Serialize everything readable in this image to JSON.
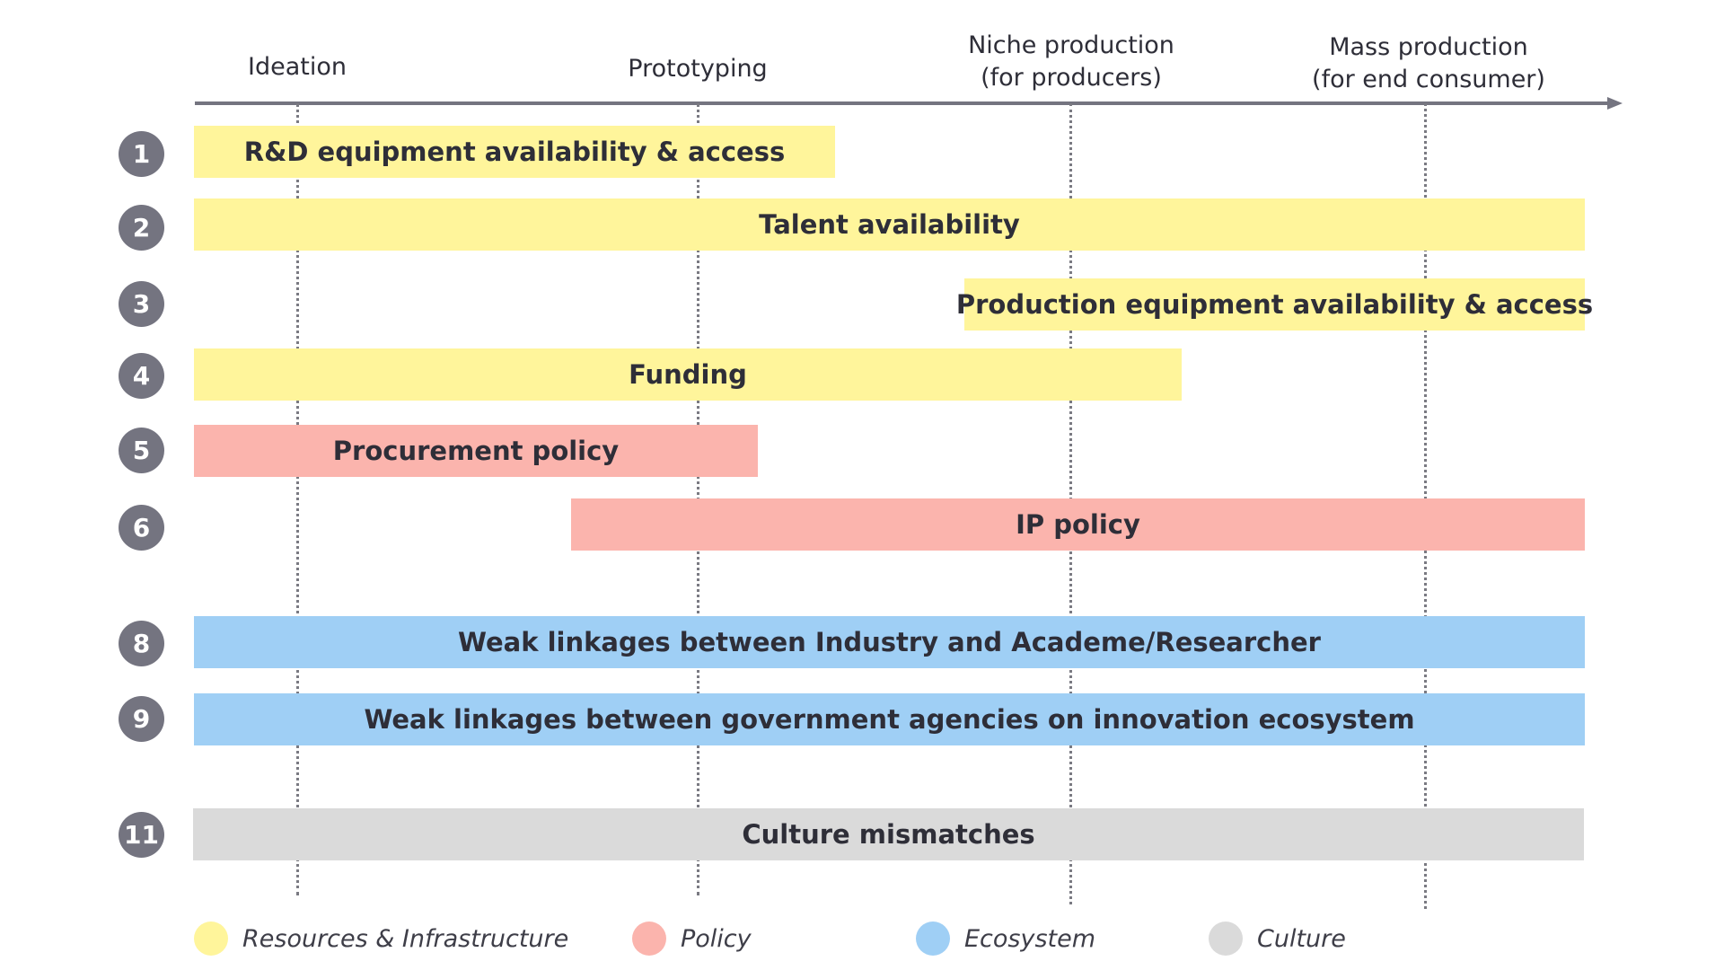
{
  "stages": [
    {
      "line1": "Ideation",
      "line2": ""
    },
    {
      "line1": "Prototyping",
      "line2": ""
    },
    {
      "line1": "Niche production",
      "line2": "(for producers)"
    },
    {
      "line1": "Mass production",
      "line2": "(for end consumer)"
    }
  ],
  "rows": [
    {
      "number": "1",
      "label": "R&D equipment availability & access",
      "category": "resources"
    },
    {
      "number": "2",
      "label": "Talent availability",
      "category": "resources"
    },
    {
      "number": "3",
      "label": "Production equipment availability & access",
      "category": "resources"
    },
    {
      "number": "4",
      "label": "Funding",
      "category": "resources"
    },
    {
      "number": "5",
      "label": "Procurement policy",
      "category": "policy"
    },
    {
      "number": "6",
      "label": "IP policy",
      "category": "policy"
    },
    {
      "number": "8",
      "label": "Weak linkages between Industry and Academe/Researcher",
      "category": "ecosystem"
    },
    {
      "number": "9",
      "label": "Weak linkages between government agencies on innovation ecosystem",
      "category": "ecosystem"
    },
    {
      "number": "11",
      "label": "Culture mismatches",
      "category": "culture"
    }
  ],
  "legend": [
    {
      "label": "Resources & Infrastructure",
      "color": "#fff59b",
      "icon": "yellow-dot-icon"
    },
    {
      "label": "Policy",
      "color": "#fbb4ad",
      "icon": "pink-dot-icon"
    },
    {
      "label": "Ecosystem",
      "color": "#9fcff5",
      "icon": "blue-dot-icon"
    },
    {
      "label": "Culture",
      "color": "#dadada",
      "icon": "gray-dot-icon"
    }
  ]
}
